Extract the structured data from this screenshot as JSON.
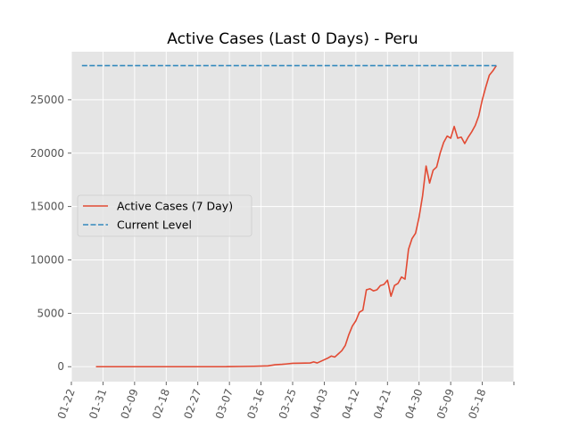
{
  "chart_data": {
    "type": "line",
    "title": "Active Cases (Last 0 Days) - Peru",
    "xlabel": "",
    "ylabel": "",
    "x_tick_labels": [
      "01-22",
      "01-31",
      "02-09",
      "02-18",
      "02-27",
      "03-07",
      "03-16",
      "03-25",
      "04-03",
      "04-12",
      "04-21",
      "04-30",
      "05-09",
      "05-18"
    ],
    "xlim": [
      "2020-01-22",
      "2020-05-27"
    ],
    "ylim": [
      -1400,
      29500
    ],
    "yticks": [
      0,
      5000,
      10000,
      15000,
      20000,
      25000
    ],
    "grid": true,
    "legend": {
      "position": "center-left",
      "entries": [
        "Active Cases (7 Day)",
        "Current Level"
      ]
    },
    "series": [
      {
        "name": "Active Cases (7 Day)",
        "color": "#E24A33",
        "style": "solid",
        "points": [
          [
            "2020-01-29",
            0
          ],
          [
            "2020-02-10",
            0
          ],
          [
            "2020-02-20",
            0
          ],
          [
            "2020-03-01",
            0
          ],
          [
            "2020-03-06",
            0
          ],
          [
            "2020-03-10",
            20
          ],
          [
            "2020-03-14",
            40
          ],
          [
            "2020-03-18",
            80
          ],
          [
            "2020-03-20",
            180
          ],
          [
            "2020-03-22",
            220
          ],
          [
            "2020-03-23",
            250
          ],
          [
            "2020-03-25",
            320
          ],
          [
            "2020-03-27",
            330
          ],
          [
            "2020-03-30",
            350
          ],
          [
            "2020-03-31",
            450
          ],
          [
            "2020-04-01",
            350
          ],
          [
            "2020-04-03",
            650
          ],
          [
            "2020-04-04",
            800
          ],
          [
            "2020-04-05",
            1000
          ],
          [
            "2020-04-06",
            900
          ],
          [
            "2020-04-07",
            1200
          ],
          [
            "2020-04-08",
            1500
          ],
          [
            "2020-04-09",
            2000
          ],
          [
            "2020-04-10",
            3000
          ],
          [
            "2020-04-11",
            3800
          ],
          [
            "2020-04-12",
            4300
          ],
          [
            "2020-04-13",
            5100
          ],
          [
            "2020-04-14",
            5300
          ],
          [
            "2020-04-15",
            7200
          ],
          [
            "2020-04-16",
            7300
          ],
          [
            "2020-04-17",
            7100
          ],
          [
            "2020-04-18",
            7200
          ],
          [
            "2020-04-19",
            7600
          ],
          [
            "2020-04-20",
            7700
          ],
          [
            "2020-04-21",
            8100
          ],
          [
            "2020-04-22",
            6600
          ],
          [
            "2020-04-23",
            7600
          ],
          [
            "2020-04-24",
            7800
          ],
          [
            "2020-04-25",
            8400
          ],
          [
            "2020-04-26",
            8200
          ],
          [
            "2020-04-27",
            11000
          ],
          [
            "2020-04-28",
            12000
          ],
          [
            "2020-04-29",
            12500
          ],
          [
            "2020-04-30",
            14000
          ],
          [
            "2020-05-01",
            16000
          ],
          [
            "2020-05-02",
            18800
          ],
          [
            "2020-05-03",
            17200
          ],
          [
            "2020-05-04",
            18400
          ],
          [
            "2020-05-05",
            18700
          ],
          [
            "2020-05-06",
            20000
          ],
          [
            "2020-05-07",
            21000
          ],
          [
            "2020-05-08",
            21600
          ],
          [
            "2020-05-09",
            21400
          ],
          [
            "2020-05-10",
            22500
          ],
          [
            "2020-05-11",
            21400
          ],
          [
            "2020-05-12",
            21500
          ],
          [
            "2020-05-13",
            20900
          ],
          [
            "2020-05-14",
            21500
          ],
          [
            "2020-05-15",
            22000
          ],
          [
            "2020-05-16",
            22600
          ],
          [
            "2020-05-17",
            23500
          ],
          [
            "2020-05-18",
            25000
          ],
          [
            "2020-05-19",
            26200
          ],
          [
            "2020-05-20",
            27300
          ],
          [
            "2020-05-21",
            27700
          ],
          [
            "2020-05-22",
            28200
          ]
        ]
      },
      {
        "name": "Current Level",
        "color": "#348ABD",
        "style": "dashed",
        "points": [
          [
            "2020-01-25",
            28200
          ],
          [
            "2020-05-22",
            28200
          ]
        ]
      }
    ]
  }
}
